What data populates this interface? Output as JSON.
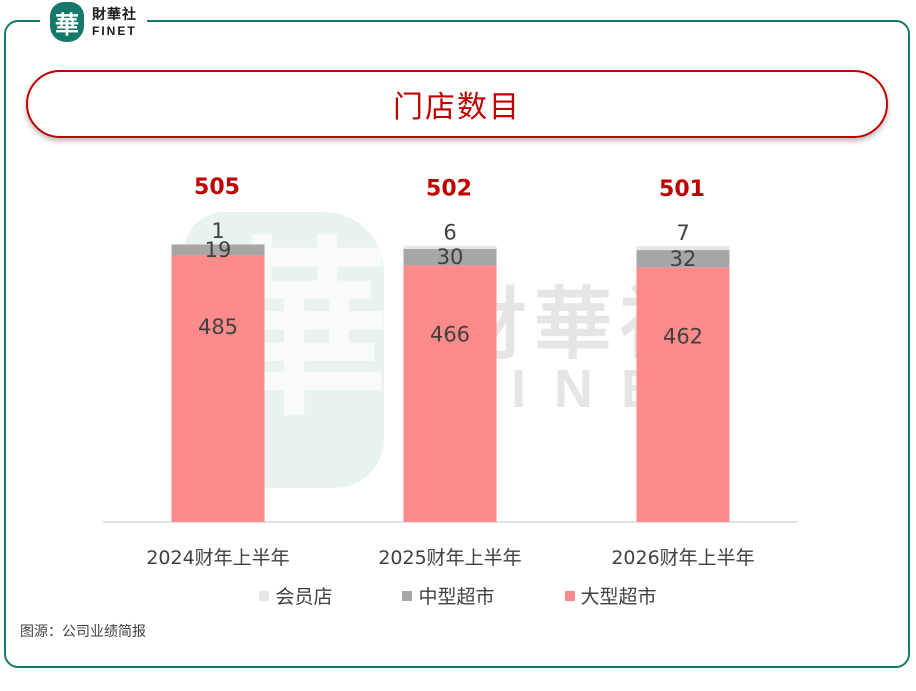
{
  "logo": {
    "char": "華",
    "cn": "財華社",
    "en": "FINET"
  },
  "title": "门店数目",
  "watermark": {
    "char": "華",
    "cn": "財華社",
    "en": "FINET"
  },
  "chart_data": {
    "type": "bar",
    "stacked": true,
    "categories": [
      "2024财年上半年",
      "2025财年上半年",
      "2026财年上半年"
    ],
    "series": [
      {
        "name": "大型超市",
        "values": [
          485,
          466,
          462
        ],
        "color": "#ff8a8a"
      },
      {
        "name": "中型超市",
        "values": [
          19,
          30,
          32
        ],
        "color": "#a6a6a6"
      },
      {
        "name": "会员店",
        "values": [
          1,
          6,
          7
        ],
        "color": "#e6e6e6"
      }
    ],
    "totals": [
      505,
      502,
      501
    ],
    "total_color": "#c00000",
    "legend_order": [
      "会员店",
      "中型超市",
      "大型超市"
    ],
    "ylim": [
      0,
      505
    ]
  },
  "source": "图源：公司业绩简报"
}
